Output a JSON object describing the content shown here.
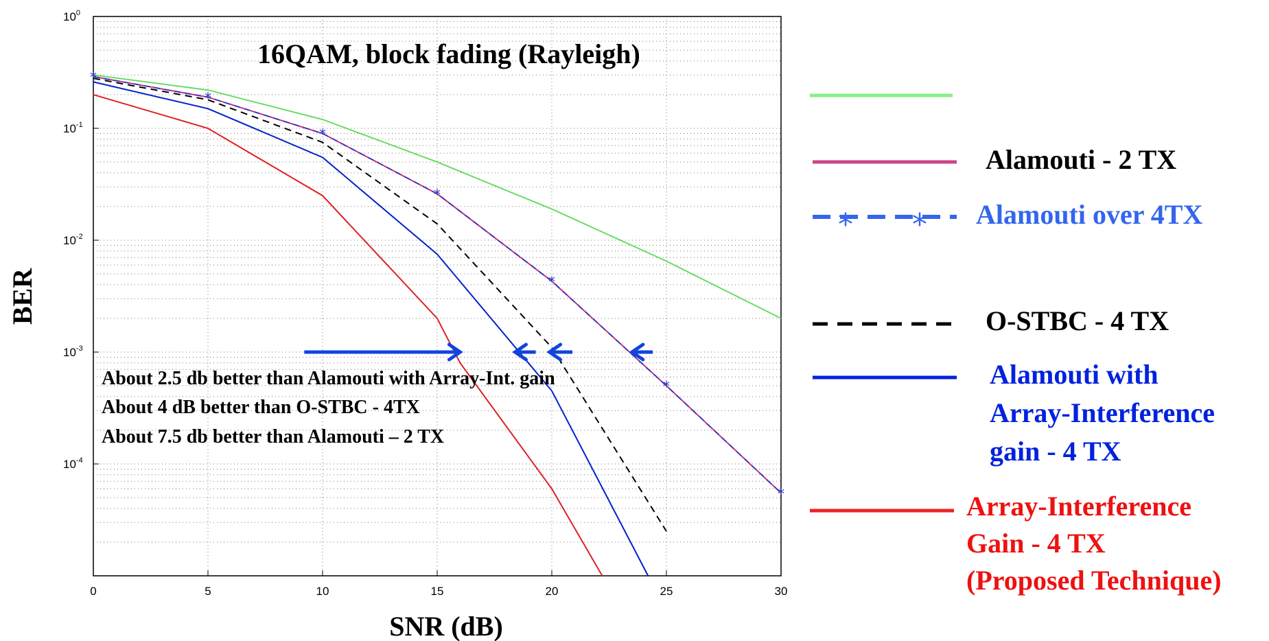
{
  "chart_data": {
    "type": "line",
    "title": "16QAM, block fading (Rayleigh)",
    "xlabel": "SNR (dB)",
    "ylabel": "BER",
    "xlim": [
      0,
      30
    ],
    "ylim": [
      1e-05,
      1
    ],
    "yscale": "log",
    "grid": true,
    "xticks": [
      "0",
      "5",
      "10",
      "15",
      "20",
      "25",
      "30"
    ],
    "yticks": [
      {
        "base": "10",
        "exp": "0"
      },
      {
        "base": "10",
        "exp": "-1"
      },
      {
        "base": "10",
        "exp": "-2"
      },
      {
        "base": "10",
        "exp": "-3"
      },
      {
        "base": "10",
        "exp": "-4"
      }
    ],
    "series": [
      {
        "name": "",
        "color": "#66dd66",
        "style": "solid",
        "x": [
          0,
          5,
          10,
          15,
          20,
          25,
          30
        ],
        "y": [
          0.3,
          0.22,
          0.12,
          0.05,
          0.019,
          0.0065,
          0.002
        ]
      },
      {
        "name": "Alamouti - 2 TX",
        "color": "#cc3377",
        "style": "solid",
        "x": [
          0,
          5,
          10,
          15,
          20,
          25,
          30
        ],
        "y": [
          0.29,
          0.19,
          0.09,
          0.026,
          0.0043,
          0.0005,
          5.5e-05
        ]
      },
      {
        "name": "Alamouti over 4TX",
        "color": "#2233cc",
        "style": "dash-star",
        "x": [
          0,
          5,
          10,
          15,
          20,
          25,
          30
        ],
        "y": [
          0.29,
          0.19,
          0.09,
          0.026,
          0.0043,
          0.0005,
          5.5e-05
        ]
      },
      {
        "name": "O-STBC - 4 TX",
        "color": "#000000",
        "style": "dashed",
        "x": [
          0,
          5,
          10,
          15,
          20,
          25
        ],
        "y": [
          0.28,
          0.18,
          0.075,
          0.014,
          0.0011,
          2.5e-05
        ]
      },
      {
        "name": "Alamouti with Array-Interference gain - 4 TX",
        "color": "#0022cc",
        "style": "solid",
        "x": [
          0,
          5,
          10,
          15,
          20,
          24.2
        ],
        "y": [
          0.26,
          0.15,
          0.055,
          0.0075,
          0.00045,
          1e-05
        ]
      },
      {
        "name": "Array-Interference Gain - 4 TX (Proposed Technique)",
        "color": "#dd2222",
        "style": "solid",
        "x": [
          0,
          5,
          10,
          15,
          16,
          20,
          22.2
        ],
        "y": [
          0.2,
          0.1,
          0.025,
          0.002,
          0.0008,
          6e-05,
          1e-05
        ]
      }
    ],
    "annotations": [
      "About 2.5 db better than Alamouti with Array-Int. gain",
      "About 4 dB better than O-STBC - 4TX",
      "About 7.5 db better than Alamouti – 2 TX"
    ],
    "arrows": [
      {
        "from_x": 9.2,
        "to_x": 16.0,
        "y": 0.001
      },
      {
        "from_x": 19.3,
        "to_x": 18.4,
        "y": 0.001
      },
      {
        "from_x": 20.9,
        "to_x": 19.9,
        "y": 0.001
      },
      {
        "from_x": 24.4,
        "to_x": 23.5,
        "y": 0.001
      }
    ],
    "arrow_color": "#1144dd"
  },
  "legend": {
    "labels": [
      "Alamouti - 2 TX",
      "Alamouti over 4TX",
      "O-STBC - 4 TX",
      "Alamouti with",
      "Array-Interference",
      "gain - 4 TX",
      "Array-Interference",
      "Gain - 4 TX",
      "(Proposed Technique)"
    ],
    "colors": {
      "black": "#000000",
      "blue_light": "#3366ee",
      "blue": "#0022dd",
      "red": "#ee1111"
    }
  }
}
